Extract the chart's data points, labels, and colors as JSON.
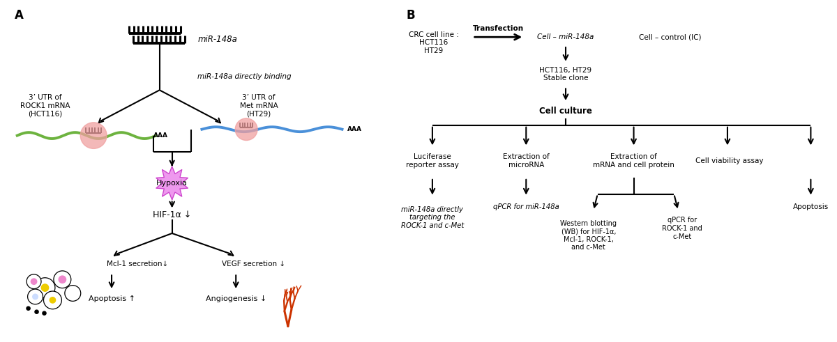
{
  "bg_color": "#ffffff",
  "panel_a_label": "A",
  "panel_b_label": "B",
  "font_color": "#000000",
  "arrow_color": "#000000",
  "green_line_color": "#6db33f",
  "blue_line_color": "#4a90d9",
  "pink_circle_color": "#f0a0a0",
  "hypoxia_color": "#ee99ee",
  "hypoxia_edge_color": "#cc44cc",
  "orange_tree_color": "#cc3300",
  "miR148a_text": "miR-148a",
  "directly_binding_text": "miR-148a directly binding",
  "rock1_text": "3’ UTR of\nROCK1 mRNA\n(HCT116)",
  "met_text": "3’ UTR of\nMet mRNA\n(HT29)",
  "aaa_text1": "AAA",
  "aaa_text2": "AAA",
  "hypoxia_text": "Hypoxia",
  "hif1a_text": "HIF-1α ↓",
  "mcl1_text": "Mcl-1 secretion↓",
  "vegf_text": "VEGF secretion ↓",
  "apoptosis_text": "Apoptosis ↑",
  "angiogenesis_text": "Angiogenesis ↓",
  "crc_text": "CRC cell line :\nHCT116\nHT29",
  "transfection_text": "Transfection",
  "cell_mir_text": "Cell – miR-148a",
  "cell_control_text": "Cell – control (IC)",
  "stable_clone_text": "HCT116, HT29\nStable clone",
  "cell_culture_text": "Cell culture",
  "luciferase_text": "Luciferase\nreporter assay",
  "extraction_mirna_text": "Extraction of\nmicroRNA",
  "extraction_mrna_text": "Extraction of\nmRNA and cell protein",
  "cell_viability_text": "Cell viability assay",
  "mir148a_targeting_text": "miR-148a directly\ntargeting the\nROCK-1 and c-Met",
  "qpcr_mir_text": "qPCR for miR-148a",
  "wb_text": "Western blotting\n(WB) for HIF-1α,\nMcl-1, ROCK-1,\nand c-Met",
  "qpcr_rock_text": "qPCR for\nROCK-1 and\nc-Met",
  "apoptosis_b_text": "Apoptosis"
}
